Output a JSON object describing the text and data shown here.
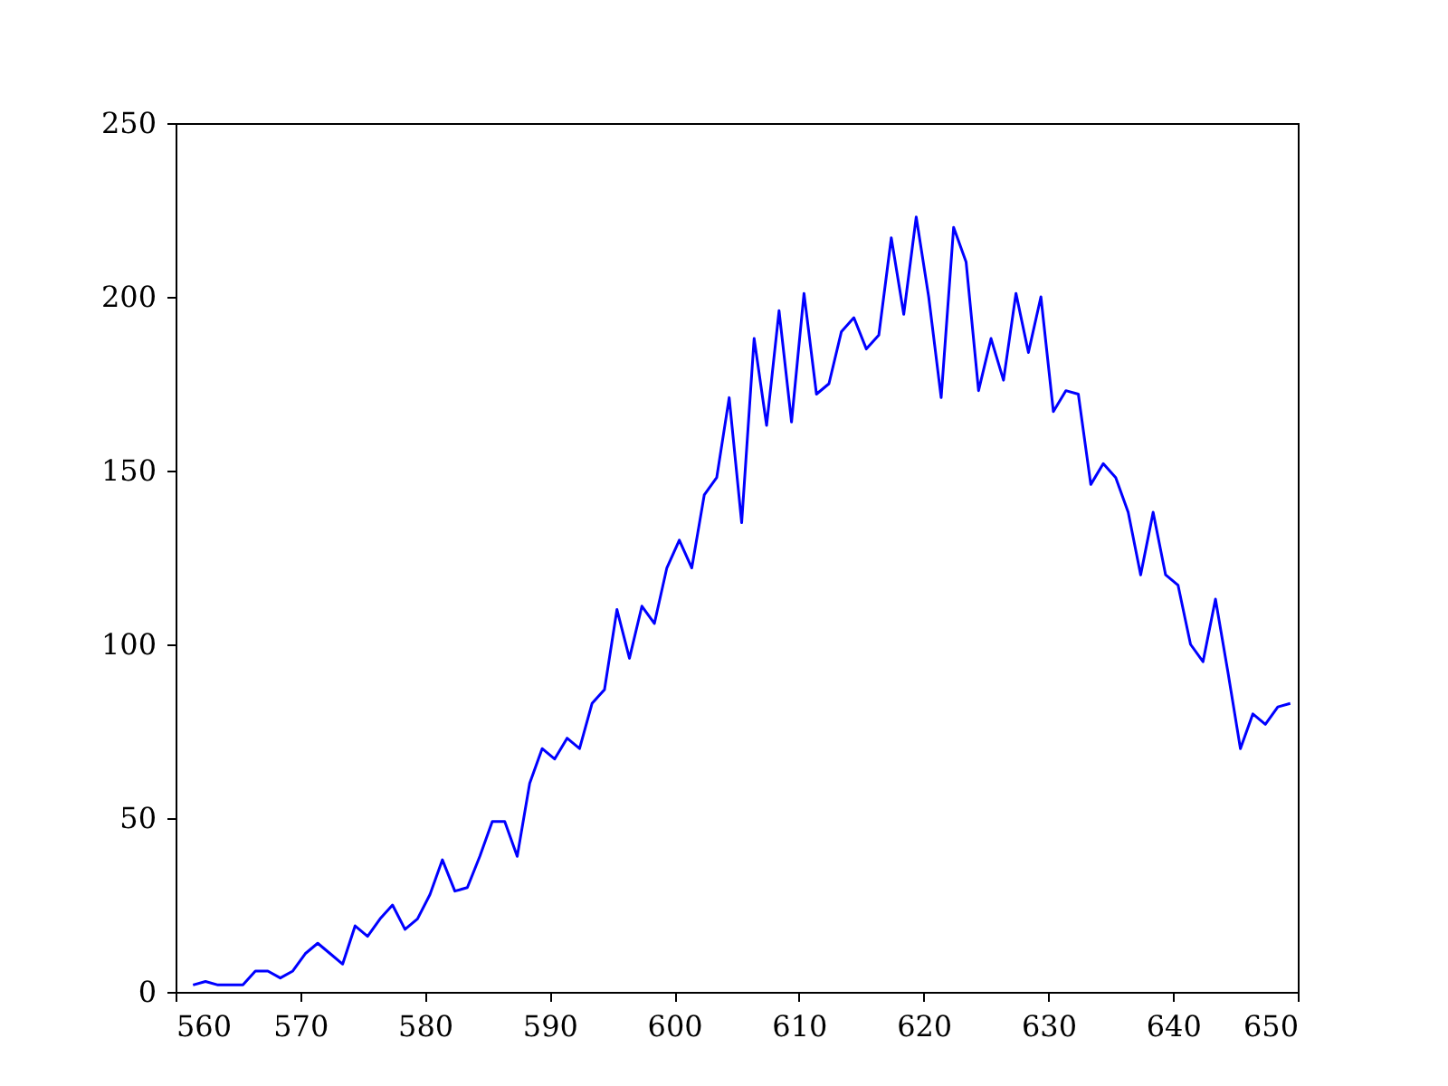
{
  "chart_data": {
    "type": "line",
    "x": [
      561.4,
      562.4,
      563.4,
      564.4,
      565.4,
      566.4,
      567.4,
      568.4,
      569.4,
      570.4,
      571.4,
      572.4,
      573.4,
      574.4,
      575.4,
      576.4,
      577.4,
      578.4,
      579.4,
      580.4,
      581.4,
      582.4,
      583.4,
      584.4,
      585.4,
      586.4,
      587.4,
      588.4,
      589.4,
      590.4,
      591.4,
      592.4,
      593.4,
      594.4,
      595.4,
      596.4,
      597.4,
      598.4,
      599.4,
      600.4,
      601.4,
      602.4,
      603.4,
      604.4,
      605.4,
      606.4,
      607.4,
      608.4,
      609.4,
      610.4,
      611.4,
      612.4,
      613.4,
      614.4,
      615.4,
      616.4,
      617.4,
      618.4,
      619.4,
      620.4,
      621.4,
      622.4,
      623.4,
      624.4,
      625.4,
      626.4,
      627.4,
      628.4,
      629.4,
      630.4,
      631.4,
      632.4,
      633.4,
      634.4,
      635.4,
      636.4,
      637.4,
      638.4,
      639.4,
      640.4,
      641.4,
      642.4,
      643.4,
      644.4,
      645.4,
      646.4,
      647.4,
      648.4,
      649.4
    ],
    "series": [
      {
        "color": "#0000ff",
        "values": [
          2,
          3,
          2,
          2,
          2,
          6,
          6,
          4,
          6,
          11,
          14,
          11,
          8,
          19,
          16,
          21,
          25,
          18,
          21,
          28,
          38,
          29,
          30,
          39,
          49,
          49,
          39,
          60,
          70,
          67,
          73,
          70,
          83,
          87,
          110,
          96,
          111,
          106,
          122,
          130,
          122,
          143,
          148,
          171,
          135,
          188,
          163,
          196,
          164,
          201,
          172,
          175,
          190,
          194,
          185,
          189,
          217,
          195,
          223,
          200,
          171,
          220,
          210,
          173,
          188,
          176,
          201,
          184,
          200,
          167,
          173,
          172,
          146,
          152,
          148,
          138,
          120,
          138,
          120,
          117,
          100,
          95,
          113,
          92,
          70,
          80,
          77,
          82,
          83
        ]
      }
    ],
    "xlim": [
      560,
      650
    ],
    "ylim": [
      0,
      250
    ],
    "xticks": [
      560,
      570,
      580,
      590,
      600,
      610,
      620,
      630,
      640,
      650
    ],
    "yticks": [
      0,
      50,
      100,
      150,
      200,
      250
    ],
    "grid": false,
    "line_style": "solid",
    "marker": "none"
  }
}
